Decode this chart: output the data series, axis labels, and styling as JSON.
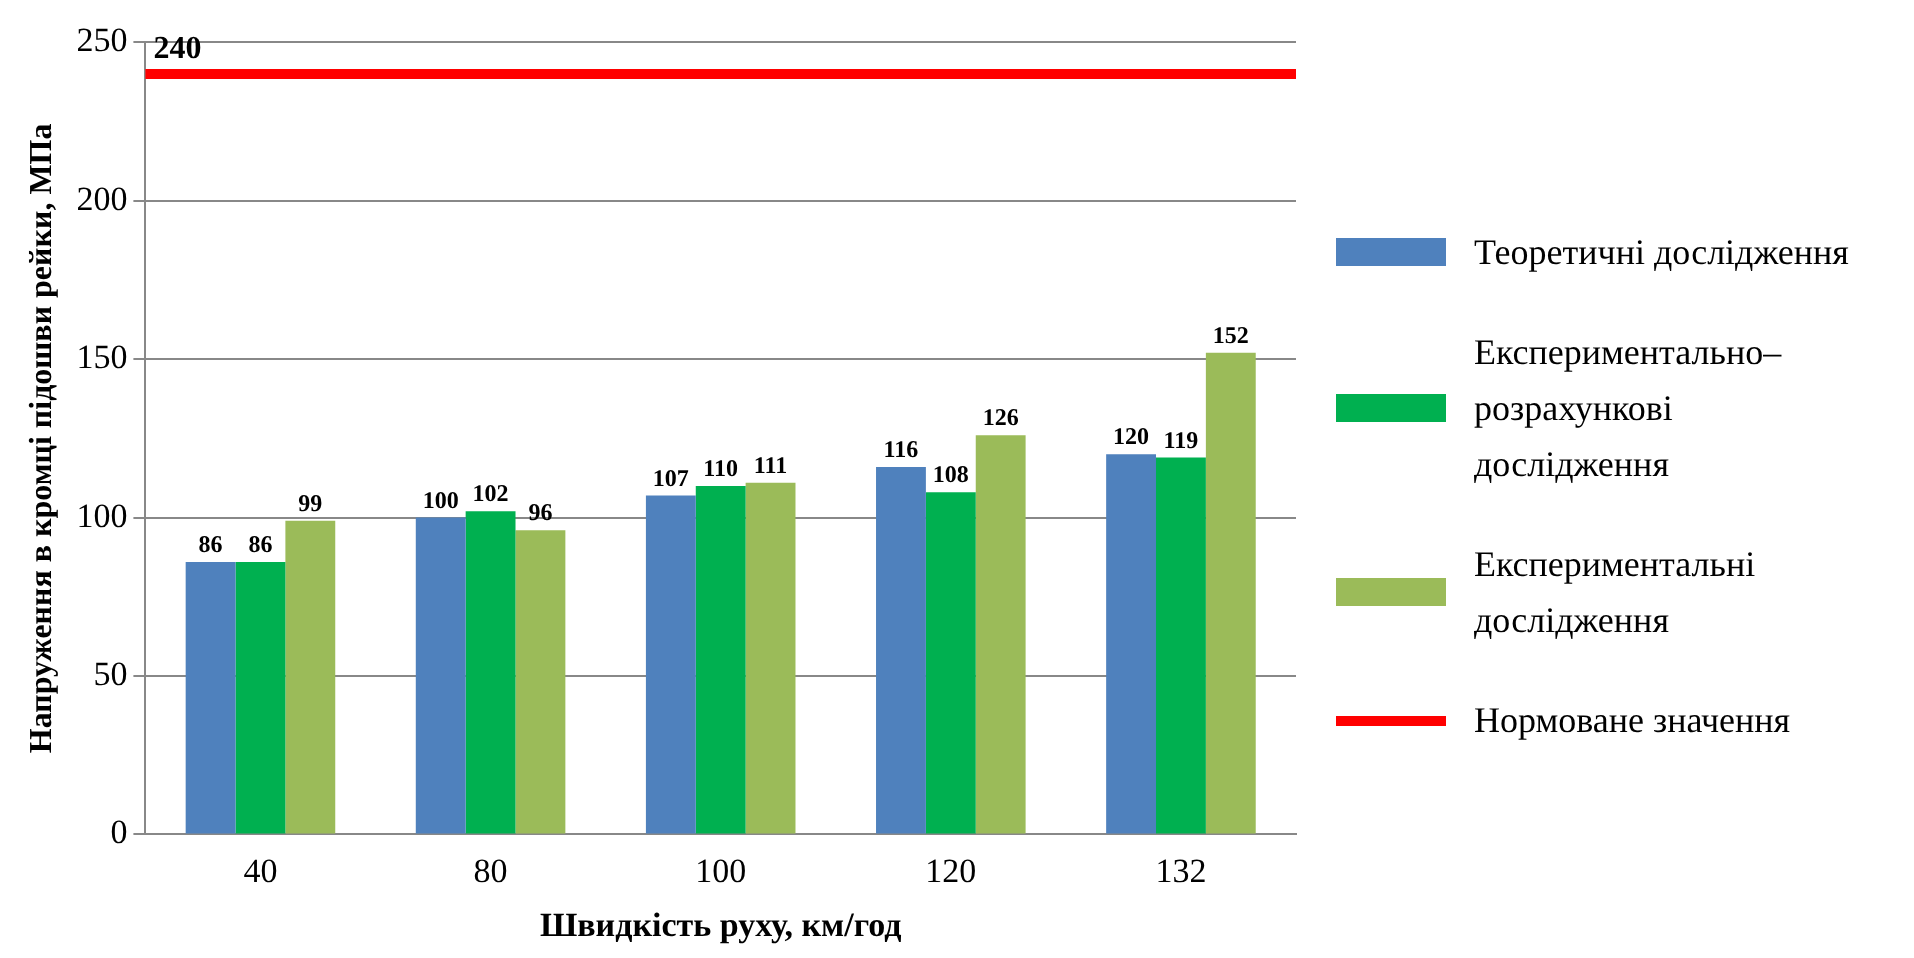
{
  "chart_data": {
    "type": "bar",
    "xlabel": "Швидкість руху, км/год",
    "ylabel": "Напруження в кромці підошви рейки, МПа",
    "categories": [
      "40",
      "80",
      "100",
      "120",
      "132"
    ],
    "series": [
      {
        "name": "Теоретичні дослідження",
        "color": "#4f81bd",
        "values": [
          86,
          100,
          107,
          116,
          120
        ]
      },
      {
        "name": "Експериментально–розрахункові дослідження",
        "color": "#00b050",
        "values": [
          86,
          102,
          110,
          108,
          119
        ]
      },
      {
        "name": " Експериментальні дослідження",
        "color": "#9bbb59",
        "values": [
          99,
          96,
          111,
          126,
          152
        ]
      }
    ],
    "ylim": [
      0,
      250
    ],
    "yticks": [
      0,
      50,
      100,
      150,
      200,
      250
    ],
    "grid": "y",
    "legend": "right",
    "data_labels": true,
    "ref_lines": [
      {
        "axis": "y",
        "value": 240,
        "label": "Нормоване значення",
        "color": "#ff0000"
      }
    ],
    "annotations": [
      {
        "text": "240",
        "y": 240
      }
    ]
  }
}
